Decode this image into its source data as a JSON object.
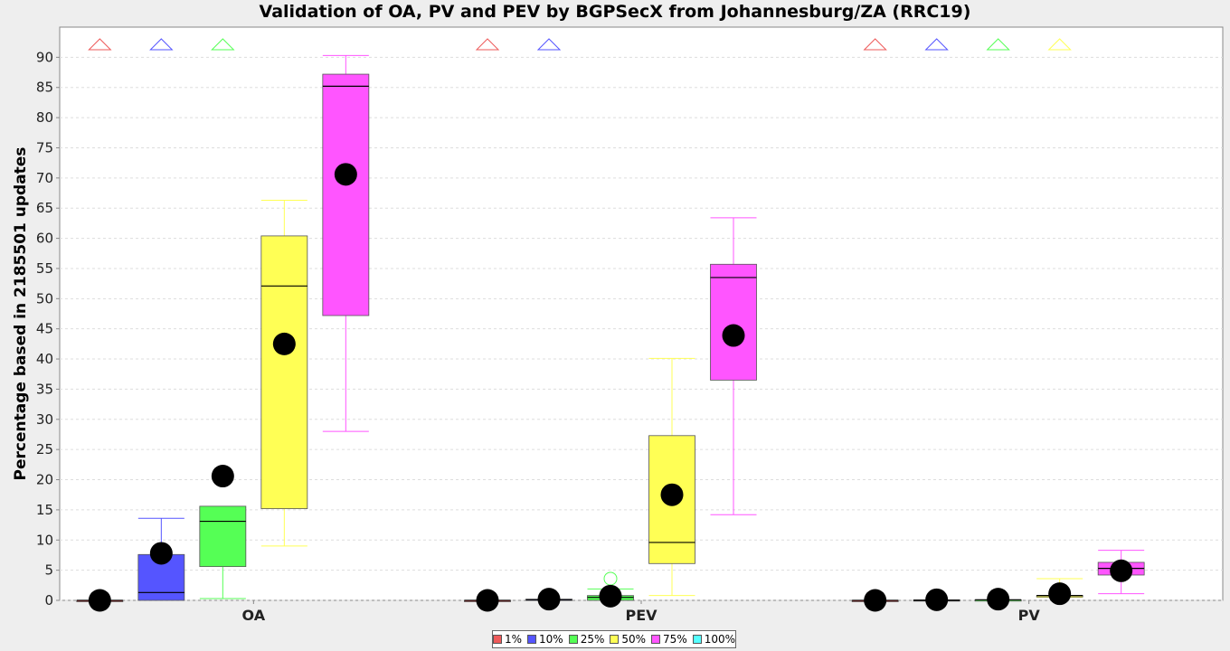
{
  "chart_data": {
    "type": "box",
    "title": "Validation of OA, PV and PEV by BGPSecX from Johannesburg/ZA (RRC19)",
    "ylabel": "Percentage based in 2185501 updates",
    "xlabel": "",
    "ylim": [
      0,
      95
    ],
    "yticks": [
      0,
      5,
      10,
      15,
      20,
      25,
      30,
      35,
      40,
      45,
      50,
      55,
      60,
      65,
      70,
      75,
      80,
      85,
      90
    ],
    "grid": true,
    "legend_position": "bottom",
    "categories": [
      "OA",
      "PEV",
      "PV"
    ],
    "series": [
      {
        "name": "1%",
        "color": "#ee5a5a",
        "boxes": [
          {
            "min": 0,
            "q1": 0,
            "median": 0,
            "q3": 0,
            "max": 0,
            "mean": 0,
            "outlier_above": true
          },
          {
            "min": 0,
            "q1": 0,
            "median": 0,
            "q3": 0,
            "max": 0,
            "mean": 0,
            "outlier_above": true
          },
          {
            "min": 0,
            "q1": 0,
            "median": 0,
            "q3": 0,
            "max": 0,
            "mean": 0,
            "outlier_above": true
          }
        ]
      },
      {
        "name": "10%",
        "color": "#5555ff",
        "boxes": [
          {
            "min": 0,
            "q1": 0,
            "median": 1.3,
            "q3": 7.6,
            "max": 13.6,
            "mean": 7.8,
            "outlier_above": true
          },
          {
            "min": 0,
            "q1": 0,
            "median": 0.1,
            "q3": 0.2,
            "max": 0.2,
            "mean": 0.2,
            "outlier_above": true
          },
          {
            "min": 0,
            "q1": 0,
            "median": 0,
            "q3": 0.1,
            "max": 0.1,
            "mean": 0.1,
            "outlier_above": true
          }
        ]
      },
      {
        "name": "25%",
        "color": "#55ff55",
        "boxes": [
          {
            "min": 0.3,
            "q1": 5.6,
            "median": 13.1,
            "q3": 15.6,
            "max": 15.6,
            "mean": 20.6,
            "outlier_above": true
          },
          {
            "min": 0,
            "q1": 0,
            "median": 0.5,
            "q3": 0.8,
            "max": 1.9,
            "mean": 0.7,
            "outliers": [
              3.6
            ]
          },
          {
            "min": 0,
            "q1": 0,
            "median": 0.1,
            "q3": 0.1,
            "max": 0.1,
            "mean": 0.2,
            "outlier_above": true
          }
        ]
      },
      {
        "name": "50%",
        "color": "#ffff55",
        "boxes": [
          {
            "min": 9.0,
            "q1": 15.2,
            "median": 52.1,
            "q3": 60.4,
            "max": 66.3,
            "mean": 42.5
          },
          {
            "min": 0.8,
            "q1": 6.1,
            "median": 9.6,
            "q3": 27.3,
            "max": 40.1,
            "mean": 17.5
          },
          {
            "min": 0.5,
            "q1": 0.6,
            "median": 0.8,
            "q3": 0.8,
            "max": 3.6,
            "mean": 1.1,
            "outlier_above": true
          }
        ]
      },
      {
        "name": "75%",
        "color": "#ff55ff",
        "boxes": [
          {
            "min": 28.0,
            "q1": 47.2,
            "median": 85.2,
            "q3": 87.2,
            "max": 90.3,
            "mean": 70.6
          },
          {
            "min": 14.2,
            "q1": 36.5,
            "median": 53.5,
            "q3": 55.7,
            "max": 63.4,
            "mean": 43.9
          },
          {
            "min": 1.1,
            "q1": 4.2,
            "median": 5.3,
            "q3": 6.3,
            "max": 8.3,
            "mean": 4.9
          }
        ]
      },
      {
        "name": "100%",
        "color": "#55ffff",
        "boxes": []
      }
    ]
  }
}
